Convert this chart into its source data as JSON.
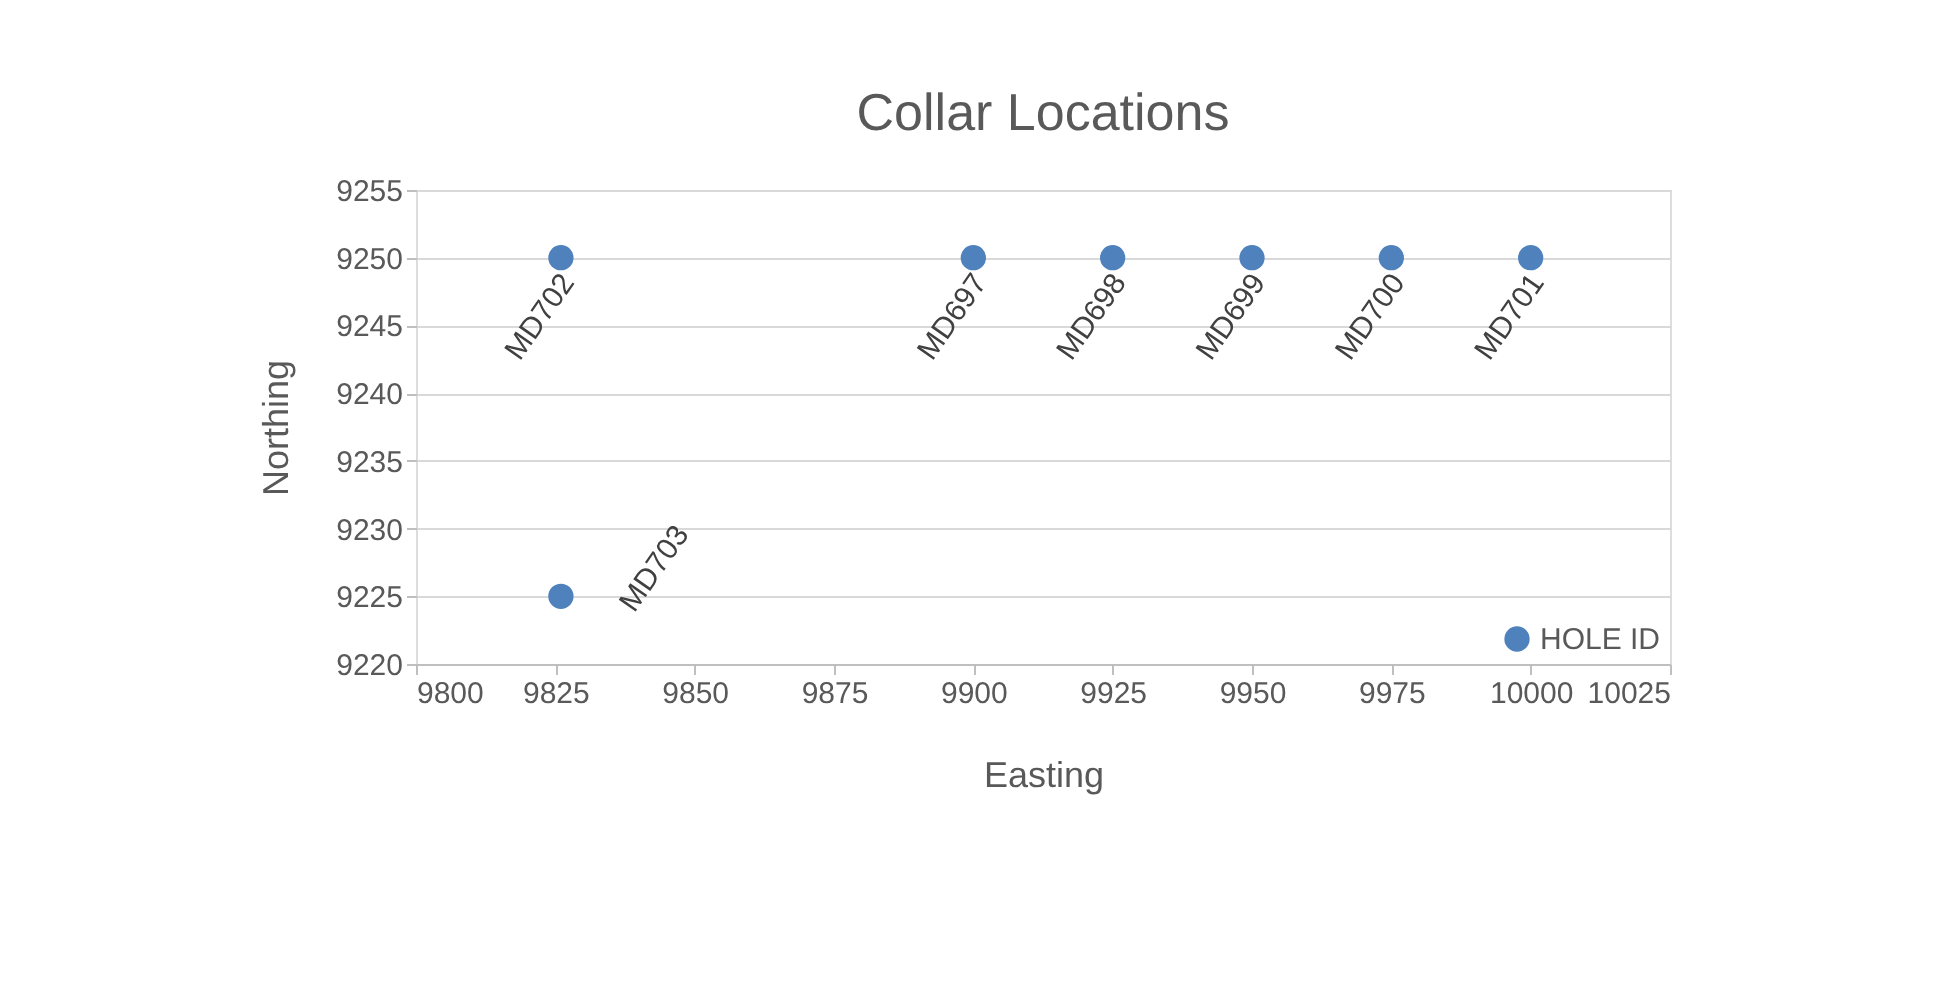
{
  "chart_data": {
    "type": "scatter",
    "title": "Collar Locations",
    "xlabel": "Easting",
    "ylabel": "Northing",
    "x": [
      9900,
      9925,
      9950,
      9975,
      10000,
      9826,
      9826
    ],
    "series": [
      {
        "name": "HOLE ID",
        "color": "#4f81bd",
        "values": [
          9250,
          9250,
          9250,
          9250,
          9250,
          9250,
          9225
        ]
      }
    ],
    "annotations": [
      {
        "text": "MD697",
        "x": 9900,
        "y": 9250
      },
      {
        "text": "MD698",
        "x": 9925,
        "y": 9250
      },
      {
        "text": "MD699",
        "x": 9950,
        "y": 9250
      },
      {
        "text": "MD700",
        "x": 9975,
        "y": 9250
      },
      {
        "text": "MD701",
        "x": 10000,
        "y": 9250
      },
      {
        "text": "MD702",
        "x": 9826,
        "y": 9250
      },
      {
        "text": "MD703",
        "x": 9826,
        "y": 9225
      }
    ],
    "xlim": [
      9800,
      10025
    ],
    "xticks": [
      9800,
      9825,
      9850,
      9875,
      9900,
      9925,
      9950,
      9975,
      10000,
      10025
    ],
    "ylim": [
      9220,
      9255
    ],
    "yticks": [
      9220,
      9225,
      9230,
      9235,
      9240,
      9245,
      9250,
      9255
    ],
    "grid": "y",
    "legend": "bottom right",
    "marker": "circle"
  }
}
